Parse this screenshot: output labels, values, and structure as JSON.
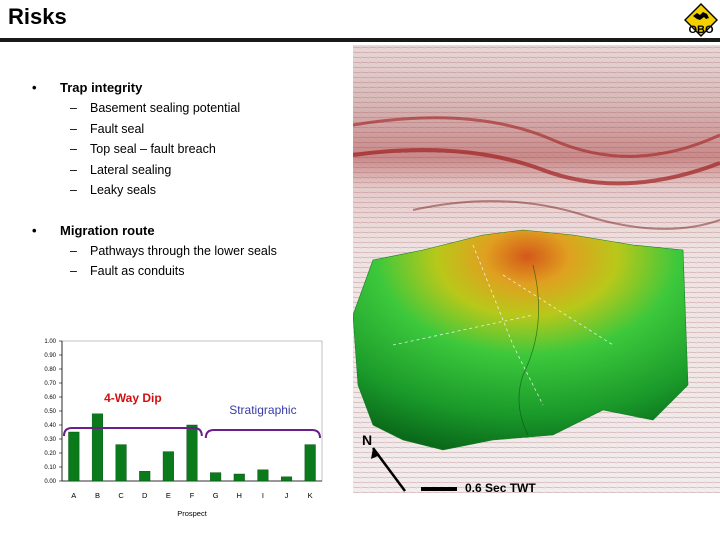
{
  "page": {
    "title": "Risks",
    "logo_text": "OBO"
  },
  "bullets": [
    {
      "heading": "Trap integrity",
      "items": [
        "Basement sealing potential",
        "Fault seal",
        "Top seal – fault breach",
        "Lateral sealing",
        "Leaky seals"
      ]
    },
    {
      "heading": "Migration route",
      "items": [
        "Pathways through the lower seals",
        "Fault as conduits"
      ]
    }
  ],
  "chart_data": {
    "type": "bar",
    "categories": [
      "A",
      "B",
      "C",
      "D",
      "E",
      "F",
      "G",
      "H",
      "I",
      "J",
      "K"
    ],
    "values": [
      0.35,
      0.48,
      0.26,
      0.07,
      0.21,
      0.4,
      0.06,
      0.05,
      0.08,
      0.03,
      0.26
    ],
    "xlabel": "Prospect",
    "ylabel": "",
    "ylim": [
      0,
      1
    ],
    "yticks": [
      "0.00",
      "0.10",
      "0.20",
      "0.30",
      "0.40",
      "0.50",
      "0.60",
      "0.70",
      "0.80",
      "0.90",
      "1.00"
    ],
    "bar_color": "#0a7a1a",
    "grid": false,
    "annotations": [
      {
        "text": "4-Way Dip",
        "color": "#d01010",
        "bracket_color": "#6a1f8a"
      },
      {
        "text": "Stratigraphic",
        "color": "#3a3aa8",
        "bracket_color": "#6a1f8a"
      }
    ]
  },
  "map": {
    "north_label": "N",
    "scale_label": "0.6 Sec TWT"
  }
}
